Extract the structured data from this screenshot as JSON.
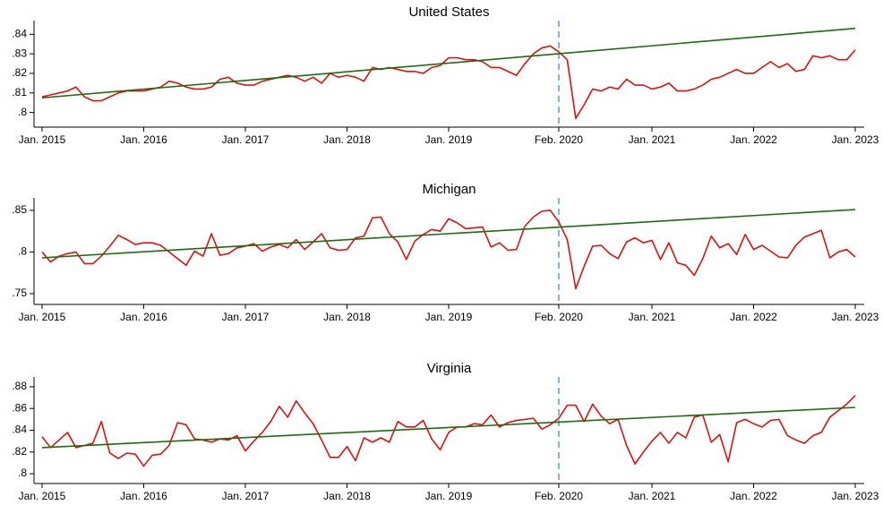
{
  "chart_data": [
    {
      "type": "line",
      "title": "United States",
      "x": [
        "Jan. 2015",
        "Feb. 2015",
        "Mar. 2015",
        "Apr. 2015",
        "May 2015",
        "Jun. 2015",
        "Jul. 2015",
        "Aug. 2015",
        "Sep. 2015",
        "Oct. 2015",
        "Nov. 2015",
        "Dec. 2015",
        "Jan. 2016",
        "Feb. 2016",
        "Mar. 2016",
        "Apr. 2016",
        "May 2016",
        "Jun. 2016",
        "Jul. 2016",
        "Aug. 2016",
        "Sep. 2016",
        "Oct. 2016",
        "Nov. 2016",
        "Dec. 2016",
        "Jan. 2017",
        "Feb. 2017",
        "Mar. 2017",
        "Apr. 2017",
        "May 2017",
        "Jun. 2017",
        "Jul. 2017",
        "Aug. 2017",
        "Sep. 2017",
        "Oct. 2017",
        "Nov. 2017",
        "Dec. 2017",
        "Jan. 2018",
        "Feb. 2018",
        "Mar. 2018",
        "Apr. 2018",
        "May 2018",
        "Jun. 2018",
        "Jul. 2018",
        "Aug. 2018",
        "Sep. 2018",
        "Oct. 2018",
        "Nov. 2018",
        "Dec. 2018",
        "Jan. 2019",
        "Feb. 2019",
        "Mar. 2019",
        "Apr. 2019",
        "May 2019",
        "Jun. 2019",
        "Jul. 2019",
        "Aug. 2019",
        "Sep. 2019",
        "Oct. 2019",
        "Nov. 2019",
        "Dec. 2019",
        "Jan. 2020",
        "Feb. 2020",
        "Mar. 2020",
        "Apr. 2020",
        "May 2020",
        "Jun. 2020",
        "Jul. 2020",
        "Aug. 2020",
        "Sep. 2020",
        "Oct. 2020",
        "Nov. 2020",
        "Dec. 2020",
        "Jan. 2021",
        "Feb. 2021",
        "Mar. 2021",
        "Apr. 2021",
        "May 2021",
        "Jun. 2021",
        "Jul. 2021",
        "Aug. 2021",
        "Sep. 2021",
        "Oct. 2021",
        "Nov. 2021",
        "Dec. 2021",
        "Jan. 2022",
        "Feb. 2022",
        "Mar. 2022",
        "Apr. 2022",
        "May 2022",
        "Jun. 2022",
        "Jul. 2022",
        "Aug. 2022",
        "Sep. 2022",
        "Oct. 2022",
        "Nov. 2022",
        "Dec. 2022",
        "Jan. 2023"
      ],
      "xticks": [
        "Jan. 2015",
        "Jan. 2016",
        "Jan. 2017",
        "Jan. 2018",
        "Jan. 2019",
        "Feb. 2020",
        "Jan. 2021",
        "Jan. 2022",
        "Jan. 2023"
      ],
      "vline": "Feb. 2020",
      "vline_color": "#7ab6dd",
      "ylim": [
        0.7925,
        0.847
      ],
      "yticks": [
        {
          "value": 0.8,
          "label": ".8"
        },
        {
          "value": 0.81,
          "label": ".81"
        },
        {
          "value": 0.82,
          "label": ".82"
        },
        {
          "value": 0.83,
          "label": ".83"
        },
        {
          "value": 0.84,
          "label": ".84"
        }
      ],
      "series": [
        {
          "color": "#dd1111",
          "values": [
            0.808,
            0.809,
            0.81,
            0.811,
            0.813,
            0.808,
            0.806,
            0.806,
            0.808,
            0.81,
            0.811,
            0.811,
            0.811,
            0.812,
            0.813,
            0.816,
            0.815,
            0.813,
            0.812,
            0.812,
            0.813,
            0.817,
            0.818,
            0.815,
            0.814,
            0.814,
            0.816,
            0.817,
            0.818,
            0.819,
            0.818,
            0.816,
            0.818,
            0.815,
            0.82,
            0.818,
            0.819,
            0.818,
            0.816,
            0.823,
            0.822,
            0.823,
            0.822,
            0.821,
            0.821,
            0.82,
            0.823,
            0.824,
            0.828,
            0.828,
            0.827,
            0.827,
            0.826,
            0.823,
            0.823,
            0.821,
            0.819,
            0.825,
            0.83,
            0.833,
            0.834,
            0.831,
            0.827,
            0.797,
            0.804,
            0.812,
            0.811,
            0.813,
            0.812,
            0.817,
            0.814,
            0.814,
            0.812,
            0.813,
            0.815,
            0.811,
            0.811,
            0.812,
            0.814,
            0.817,
            0.818,
            0.82,
            0.822,
            0.82,
            0.82,
            0.823,
            0.826,
            0.823,
            0.825,
            0.821,
            0.822,
            0.829,
            0.828,
            0.829,
            0.827,
            0.827,
            0.832
          ]
        },
        {
          "color": "#1e6b12",
          "x": [
            "Jan. 2015",
            "Jan. 2023"
          ],
          "values": [
            0.8075,
            0.843
          ]
        }
      ]
    },
    {
      "type": "line",
      "title": "Michigan",
      "x": [
        "Jan. 2015",
        "Feb. 2015",
        "Mar. 2015",
        "Apr. 2015",
        "May 2015",
        "Jun. 2015",
        "Jul. 2015",
        "Aug. 2015",
        "Sep. 2015",
        "Oct. 2015",
        "Nov. 2015",
        "Dec. 2015",
        "Jan. 2016",
        "Feb. 2016",
        "Mar. 2016",
        "Apr. 2016",
        "May 2016",
        "Jun. 2016",
        "Jul. 2016",
        "Aug. 2016",
        "Sep. 2016",
        "Oct. 2016",
        "Nov. 2016",
        "Dec. 2016",
        "Jan. 2017",
        "Feb. 2017",
        "Mar. 2017",
        "Apr. 2017",
        "May 2017",
        "Jun. 2017",
        "Jul. 2017",
        "Aug. 2017",
        "Sep. 2017",
        "Oct. 2017",
        "Nov. 2017",
        "Dec. 2017",
        "Jan. 2018",
        "Feb. 2018",
        "Mar. 2018",
        "Apr. 2018",
        "May 2018",
        "Jun. 2018",
        "Jul. 2018",
        "Aug. 2018",
        "Sep. 2018",
        "Oct. 2018",
        "Nov. 2018",
        "Dec. 2018",
        "Jan. 2019",
        "Feb. 2019",
        "Mar. 2019",
        "Apr. 2019",
        "May 2019",
        "Jun. 2019",
        "Jul. 2019",
        "Aug. 2019",
        "Sep. 2019",
        "Oct. 2019",
        "Nov. 2019",
        "Dec. 2019",
        "Jan. 2020",
        "Feb. 2020",
        "Mar. 2020",
        "Apr. 2020",
        "May 2020",
        "Jun. 2020",
        "Jul. 2020",
        "Aug. 2020",
        "Sep. 2020",
        "Oct. 2020",
        "Nov. 2020",
        "Dec. 2020",
        "Jan. 2021",
        "Feb. 2021",
        "Mar. 2021",
        "Apr. 2021",
        "May 2021",
        "Jun. 2021",
        "Jul. 2021",
        "Aug. 2021",
        "Sep. 2021",
        "Oct. 2021",
        "Nov. 2021",
        "Dec. 2021",
        "Jan. 2022",
        "Feb. 2022",
        "Mar. 2022",
        "Apr. 2022",
        "May 2022",
        "Jun. 2022",
        "Jul. 2022",
        "Aug. 2022",
        "Sep. 2022",
        "Oct. 2022",
        "Nov. 2022",
        "Dec. 2022",
        "Jan. 2023"
      ],
      "xticks": [
        "Jan. 2015",
        "Jan. 2016",
        "Jan. 2017",
        "Jan. 2018",
        "Jan. 2019",
        "Feb. 2020",
        "Jan. 2021",
        "Jan. 2022",
        "Jan. 2023"
      ],
      "vline": "Feb. 2020",
      "vline_color": "#7ab6dd",
      "ylim": [
        0.737,
        0.865
      ],
      "yticks": [
        {
          "value": 0.75,
          "label": ".75"
        },
        {
          "value": 0.8,
          "label": ".8"
        },
        {
          "value": 0.85,
          "label": ".85"
        }
      ],
      "series": [
        {
          "color": "#dd1111",
          "values": [
            0.8,
            0.788,
            0.795,
            0.798,
            0.8,
            0.786,
            0.786,
            0.795,
            0.807,
            0.82,
            0.815,
            0.809,
            0.811,
            0.811,
            0.808,
            0.8,
            0.792,
            0.784,
            0.801,
            0.795,
            0.822,
            0.796,
            0.798,
            0.805,
            0.807,
            0.81,
            0.801,
            0.806,
            0.809,
            0.805,
            0.815,
            0.803,
            0.812,
            0.822,
            0.805,
            0.802,
            0.803,
            0.817,
            0.819,
            0.841,
            0.842,
            0.822,
            0.812,
            0.791,
            0.813,
            0.821,
            0.827,
            0.825,
            0.84,
            0.835,
            0.828,
            0.829,
            0.83,
            0.806,
            0.811,
            0.802,
            0.803,
            0.831,
            0.842,
            0.849,
            0.85,
            0.836,
            0.815,
            0.756,
            0.783,
            0.807,
            0.808,
            0.798,
            0.792,
            0.812,
            0.817,
            0.811,
            0.814,
            0.791,
            0.811,
            0.787,
            0.784,
            0.772,
            0.792,
            0.819,
            0.805,
            0.81,
            0.797,
            0.821,
            0.803,
            0.808,
            0.801,
            0.794,
            0.793,
            0.808,
            0.818,
            0.822,
            0.826,
            0.793,
            0.8,
            0.803,
            0.794
          ]
        },
        {
          "color": "#1e6b12",
          "x": [
            "Jan. 2015",
            "Jan. 2023"
          ],
          "values": [
            0.793,
            0.851
          ]
        }
      ]
    },
    {
      "type": "line",
      "title": "Virginia",
      "x": [
        "Jan. 2015",
        "Feb. 2015",
        "Mar. 2015",
        "Apr. 2015",
        "May 2015",
        "Jun. 2015",
        "Jul. 2015",
        "Aug. 2015",
        "Sep. 2015",
        "Oct. 2015",
        "Nov. 2015",
        "Dec. 2015",
        "Jan. 2016",
        "Feb. 2016",
        "Mar. 2016",
        "Apr. 2016",
        "May 2016",
        "Jun. 2016",
        "Jul. 2016",
        "Aug. 2016",
        "Sep. 2016",
        "Oct. 2016",
        "Nov. 2016",
        "Dec. 2016",
        "Jan. 2017",
        "Feb. 2017",
        "Mar. 2017",
        "Apr. 2017",
        "May 2017",
        "Jun. 2017",
        "Jul. 2017",
        "Aug. 2017",
        "Sep. 2017",
        "Oct. 2017",
        "Nov. 2017",
        "Dec. 2017",
        "Jan. 2018",
        "Feb. 2018",
        "Mar. 2018",
        "Apr. 2018",
        "May 2018",
        "Jun. 2018",
        "Jul. 2018",
        "Aug. 2018",
        "Sep. 2018",
        "Oct. 2018",
        "Nov. 2018",
        "Dec. 2018",
        "Jan. 2019",
        "Feb. 2019",
        "Mar. 2019",
        "Apr. 2019",
        "May 2019",
        "Jun. 2019",
        "Jul. 2019",
        "Aug. 2019",
        "Sep. 2019",
        "Oct. 2019",
        "Nov. 2019",
        "Dec. 2019",
        "Jan. 2020",
        "Feb. 2020",
        "Mar. 2020",
        "Apr. 2020",
        "May 2020",
        "Jun. 2020",
        "Jul. 2020",
        "Aug. 2020",
        "Sep. 2020",
        "Oct. 2020",
        "Nov. 2020",
        "Dec. 2020",
        "Jan. 2021",
        "Feb. 2021",
        "Mar. 2021",
        "Apr. 2021",
        "May 2021",
        "Jun. 2021",
        "Jul. 2021",
        "Aug. 2021",
        "Sep. 2021",
        "Oct. 2021",
        "Nov. 2021",
        "Dec. 2021",
        "Jan. 2022",
        "Feb. 2022",
        "Mar. 2022",
        "Apr. 2022",
        "May 2022",
        "Jun. 2022",
        "Jul. 2022",
        "Aug. 2022",
        "Sep. 2022",
        "Oct. 2022",
        "Nov. 2022",
        "Dec. 2022",
        "Jan. 2023"
      ],
      "xticks": [
        "Jan. 2015",
        "Jan. 2016",
        "Jan. 2017",
        "Jan. 2018",
        "Jan. 2019",
        "Feb. 2020",
        "Jan. 2021",
        "Jan. 2022",
        "Jan. 2023"
      ],
      "vline": "Feb. 2020",
      "vline_color": "#7ab6dd",
      "ylim": [
        0.791,
        0.889
      ],
      "yticks": [
        {
          "value": 0.8,
          "label": ".8"
        },
        {
          "value": 0.82,
          "label": ".82"
        },
        {
          "value": 0.84,
          "label": ".84"
        },
        {
          "value": 0.86,
          "label": ".86"
        },
        {
          "value": 0.88,
          "label": ".88"
        }
      ],
      "series": [
        {
          "color": "#dd1111",
          "values": [
            0.834,
            0.824,
            0.831,
            0.838,
            0.824,
            0.826,
            0.828,
            0.848,
            0.819,
            0.814,
            0.819,
            0.818,
            0.807,
            0.817,
            0.818,
            0.826,
            0.847,
            0.845,
            0.832,
            0.831,
            0.829,
            0.832,
            0.831,
            0.835,
            0.821,
            0.83,
            0.838,
            0.848,
            0.862,
            0.852,
            0.867,
            0.856,
            0.846,
            0.831,
            0.815,
            0.815,
            0.825,
            0.812,
            0.833,
            0.829,
            0.833,
            0.829,
            0.848,
            0.843,
            0.843,
            0.849,
            0.832,
            0.822,
            0.838,
            0.843,
            0.843,
            0.846,
            0.845,
            0.854,
            0.843,
            0.847,
            0.849,
            0.85,
            0.851,
            0.841,
            0.845,
            0.851,
            0.863,
            0.863,
            0.848,
            0.864,
            0.853,
            0.846,
            0.85,
            0.826,
            0.809,
            0.82,
            0.83,
            0.838,
            0.828,
            0.838,
            0.833,
            0.852,
            0.854,
            0.829,
            0.836,
            0.811,
            0.847,
            0.85,
            0.846,
            0.843,
            0.849,
            0.85,
            0.835,
            0.831,
            0.828,
            0.835,
            0.838,
            0.852,
            0.858,
            0.864,
            0.872
          ]
        },
        {
          "color": "#1e6b12",
          "x": [
            "Jan. 2015",
            "Jan. 2023"
          ],
          "values": [
            0.824,
            0.861
          ]
        }
      ]
    }
  ]
}
